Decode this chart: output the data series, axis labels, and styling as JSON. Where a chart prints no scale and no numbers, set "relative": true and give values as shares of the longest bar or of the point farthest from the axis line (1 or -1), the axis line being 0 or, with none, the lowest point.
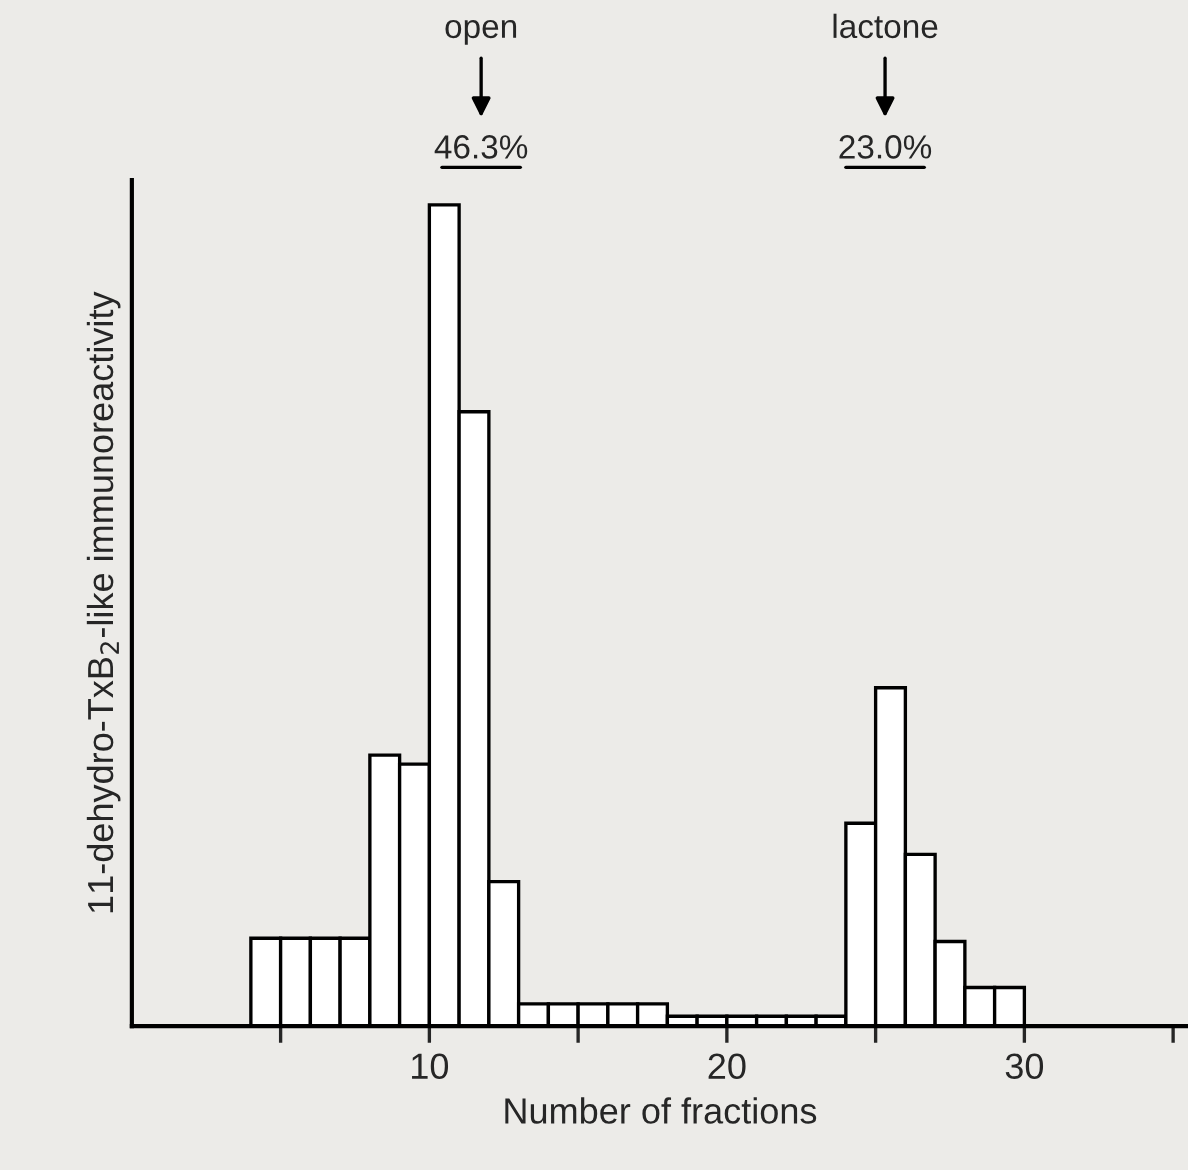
{
  "chart_data": {
    "type": "bar",
    "relative": true,
    "xlabel": "Number of fractions",
    "ylabel": "11-dehydro-TxB$_{2}$-like immunoreactivity",
    "x": [
      4.5,
      5.5,
      6.5,
      7.5,
      8.5,
      9.5,
      10.5,
      11.5,
      12.5,
      13.5,
      14.5,
      15.5,
      16.5,
      17.5,
      18.5,
      19.5,
      20.5,
      21.5,
      22.5,
      23.5,
      24.5,
      25.5,
      26.5,
      27.5,
      28.5,
      29.5
    ],
    "values": [
      0.107,
      0.107,
      0.107,
      0.107,
      0.33,
      0.319,
      1,
      0.748,
      0.176,
      0.027,
      0.027,
      0.027,
      0.027,
      0.027,
      0.012,
      0.012,
      0.012,
      0.012,
      0.012,
      0.012,
      0.247,
      0.412,
      0.209,
      0.103,
      0.047,
      0.047
    ],
    "color": "#ffffff",
    "xlim": [
      0,
      35.5
    ],
    "xticks": [
      {
        "value": 5,
        "label": null
      },
      10,
      {
        "value": 15,
        "label": null
      },
      20,
      {
        "value": 25,
        "label": null
      },
      30,
      {
        "value": 35,
        "label": null
      }
    ],
    "grid": false,
    "annotations": [
      "open\n46.3%",
      "lactone\n23.0%"
    ]
  }
}
